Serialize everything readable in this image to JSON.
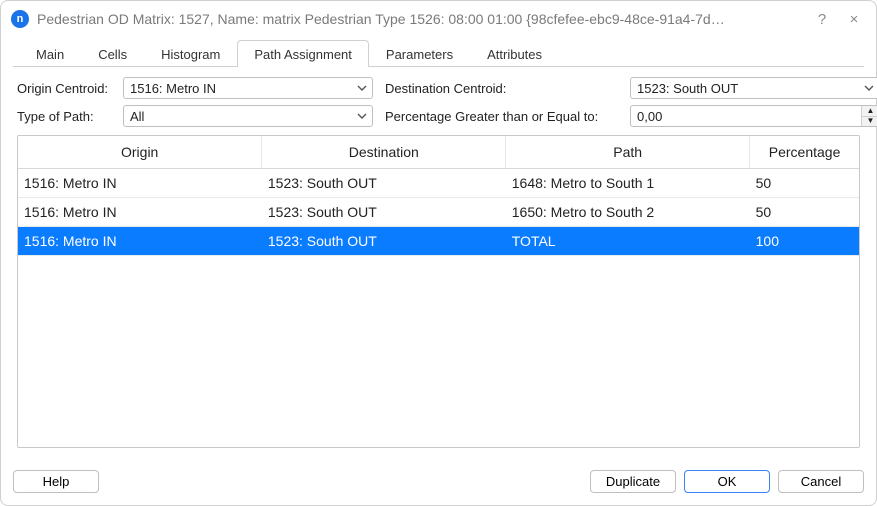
{
  "window": {
    "title": "Pedestrian OD Matrix: 1527, Name: matrix Pedestrian Type 1526: 08:00 01:00  {98cfefee-ebc9-48ce-91a4-7d…",
    "help_glyph": "?",
    "close_glyph": "×"
  },
  "tabs": {
    "items": [
      {
        "label": "Main"
      },
      {
        "label": "Cells"
      },
      {
        "label": "Histogram"
      },
      {
        "label": "Path Assignment"
      },
      {
        "label": "Parameters"
      },
      {
        "label": "Attributes"
      }
    ],
    "active_index": 3
  },
  "filters": {
    "origin_label": "Origin Centroid:",
    "origin_value": "1516: Metro IN",
    "dest_label": "Destination Centroid:",
    "dest_value": "1523: South OUT",
    "type_label": "Type of Path:",
    "type_value": "All",
    "pct_label": "Percentage Greater than or Equal to:",
    "pct_value": "0,00"
  },
  "table": {
    "columns": [
      "Origin",
      "Destination",
      "Path",
      "Percentage"
    ],
    "col_widths_pct": [
      29,
      29,
      29,
      13
    ],
    "rows": [
      {
        "cells": [
          "1516: Metro IN",
          "1523: South OUT",
          "1648: Metro to South 1",
          "50"
        ],
        "selected": false
      },
      {
        "cells": [
          "1516: Metro IN",
          "1523: South OUT",
          "1650: Metro to South 2",
          "50"
        ],
        "selected": false
      },
      {
        "cells": [
          "1516: Metro IN",
          "1523: South OUT",
          "TOTAL",
          "100"
        ],
        "selected": true
      }
    ]
  },
  "buttons": {
    "help": "Help",
    "duplicate": "Duplicate",
    "ok": "OK",
    "cancel": "Cancel"
  },
  "colors": {
    "selected_row_bg": "#0a7cff",
    "border": "#d0d0d0",
    "primary_border": "#3b82f6"
  }
}
